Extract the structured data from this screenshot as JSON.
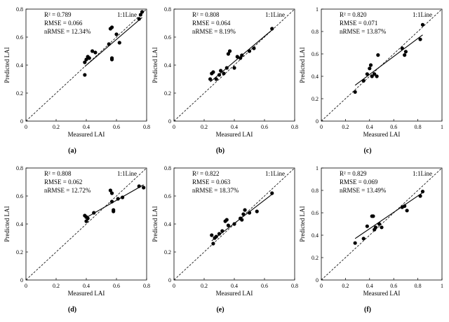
{
  "chart_data": [
    {
      "type": "scatter",
      "panel_label": "(a)",
      "xlabel": "Measured LAI",
      "ylabel": "Predicted LAI",
      "xlim": [
        0,
        0.8
      ],
      "ylim": [
        0,
        0.8
      ],
      "xticks": [
        "0",
        "0.2",
        "0.4",
        "0.6",
        "0.8"
      ],
      "yticks": [
        "0",
        "0.2",
        "0.4",
        "0.6",
        "0.8"
      ],
      "annotations": [
        "R² = 0.789",
        "RMSE = 0.066",
        "nRMSE = 12.34%"
      ],
      "line_label": "1:1Line",
      "points": [
        [
          0.39,
          0.33
        ],
        [
          0.39,
          0.42
        ],
        [
          0.4,
          0.44
        ],
        [
          0.41,
          0.46
        ],
        [
          0.42,
          0.45
        ],
        [
          0.44,
          0.5
        ],
        [
          0.46,
          0.49
        ],
        [
          0.55,
          0.55
        ],
        [
          0.56,
          0.66
        ],
        [
          0.57,
          0.67
        ],
        [
          0.57,
          0.45
        ],
        [
          0.57,
          0.44
        ],
        [
          0.6,
          0.62
        ],
        [
          0.62,
          0.56
        ],
        [
          0.75,
          0.73
        ],
        [
          0.76,
          0.76
        ],
        [
          0.77,
          0.78
        ]
      ],
      "fit": [
        [
          0.39,
          0.39
        ],
        [
          0.77,
          0.74
        ]
      ]
    },
    {
      "type": "scatter",
      "panel_label": "(b)",
      "xlabel": "Measured LAI",
      "ylabel": "Predicted LAI",
      "xlim": [
        0,
        0.8
      ],
      "ylim": [
        0,
        0.8
      ],
      "xticks": [
        "0",
        "0.2",
        "0.4",
        "0.6",
        "0.8"
      ],
      "yticks": [
        "0",
        "0.2",
        "0.4",
        "0.6",
        "0.8"
      ],
      "annotations": [
        "R² = 0.808",
        "RMSE = 0.064",
        "nRMSE = 8.19%"
      ],
      "line_label": "1:1Line",
      "points": [
        [
          0.24,
          0.3
        ],
        [
          0.25,
          0.34
        ],
        [
          0.26,
          0.35
        ],
        [
          0.28,
          0.3
        ],
        [
          0.3,
          0.33
        ],
        [
          0.31,
          0.36
        ],
        [
          0.33,
          0.34
        ],
        [
          0.35,
          0.38
        ],
        [
          0.36,
          0.48
        ],
        [
          0.37,
          0.5
        ],
        [
          0.4,
          0.38
        ],
        [
          0.42,
          0.46
        ],
        [
          0.44,
          0.45
        ],
        [
          0.45,
          0.47
        ],
        [
          0.5,
          0.5
        ],
        [
          0.53,
          0.52
        ],
        [
          0.65,
          0.66
        ]
      ],
      "fit": [
        [
          0.24,
          0.28
        ],
        [
          0.66,
          0.66
        ]
      ]
    },
    {
      "type": "scatter",
      "panel_label": "(c)",
      "xlabel": "Measured LAI",
      "ylabel": "Predicted LAI",
      "xlim": [
        0,
        1
      ],
      "ylim": [
        0,
        1
      ],
      "xticks": [
        "0",
        "0.2",
        "0.4",
        "0.6",
        "0.8",
        "1"
      ],
      "yticks": [
        "0",
        "0.2",
        "0.4",
        "0.6",
        "0.8",
        "1"
      ],
      "annotations": [
        "R² = 0.820",
        "RMSE = 0.071",
        "nRMSE = 13.87%"
      ],
      "line_label": "1:1Line",
      "points": [
        [
          0.28,
          0.26
        ],
        [
          0.35,
          0.36
        ],
        [
          0.38,
          0.42
        ],
        [
          0.4,
          0.47
        ],
        [
          0.41,
          0.5
        ],
        [
          0.42,
          0.4
        ],
        [
          0.44,
          0.42
        ],
        [
          0.46,
          0.4
        ],
        [
          0.47,
          0.59
        ],
        [
          0.67,
          0.65
        ],
        [
          0.69,
          0.59
        ],
        [
          0.7,
          0.62
        ],
        [
          0.82,
          0.73
        ],
        [
          0.84,
          0.86
        ]
      ],
      "fit": [
        [
          0.28,
          0.32
        ],
        [
          0.84,
          0.77
        ]
      ]
    },
    {
      "type": "scatter",
      "panel_label": "(d)",
      "xlabel": "Measured LAI",
      "ylabel": "Predicted LAI",
      "xlim": [
        0,
        0.8
      ],
      "ylim": [
        0,
        0.8
      ],
      "xticks": [
        "0",
        "0.2",
        "0.4",
        "0.6",
        "0.8"
      ],
      "yticks": [
        "0",
        "0.2",
        "0.4",
        "0.6",
        "0.8"
      ],
      "annotations": [
        "R² = 0.808",
        "RMSE = 0.062",
        "nRMSE = 12.72%"
      ],
      "line_label": "1:1Line",
      "points": [
        [
          0.39,
          0.46
        ],
        [
          0.4,
          0.45
        ],
        [
          0.4,
          0.42
        ],
        [
          0.41,
          0.44
        ],
        [
          0.45,
          0.48
        ],
        [
          0.56,
          0.64
        ],
        [
          0.57,
          0.62
        ],
        [
          0.57,
          0.56
        ],
        [
          0.58,
          0.49
        ],
        [
          0.58,
          0.5
        ],
        [
          0.61,
          0.58
        ],
        [
          0.64,
          0.59
        ],
        [
          0.75,
          0.67
        ],
        [
          0.78,
          0.66
        ]
      ],
      "fit": [
        [
          0.39,
          0.44
        ],
        [
          0.78,
          0.68
        ]
      ]
    },
    {
      "type": "scatter",
      "panel_label": "(e)",
      "xlabel": "Measured LAI",
      "ylabel": "Predicted LAI",
      "xlim": [
        0,
        0.8
      ],
      "ylim": [
        0,
        0.8
      ],
      "xticks": [
        "0",
        "0.2",
        "0.4",
        "0.6",
        "0.8"
      ],
      "yticks": [
        "0",
        "0.2",
        "0.4",
        "0.6",
        "0.8"
      ],
      "annotations": [
        "R² = 0.822",
        "RMSE = 0.063",
        "nRMSE = 18.37%"
      ],
      "line_label": "1:1Line",
      "points": [
        [
          0.25,
          0.32
        ],
        [
          0.26,
          0.26
        ],
        [
          0.27,
          0.3
        ],
        [
          0.28,
          0.31
        ],
        [
          0.3,
          0.33
        ],
        [
          0.32,
          0.35
        ],
        [
          0.34,
          0.42
        ],
        [
          0.35,
          0.43
        ],
        [
          0.36,
          0.39
        ],
        [
          0.4,
          0.4
        ],
        [
          0.44,
          0.44
        ],
        [
          0.45,
          0.43
        ],
        [
          0.46,
          0.47
        ],
        [
          0.47,
          0.5
        ],
        [
          0.5,
          0.48
        ],
        [
          0.55,
          0.49
        ],
        [
          0.65,
          0.62
        ]
      ],
      "fit": [
        [
          0.25,
          0.28
        ],
        [
          0.66,
          0.62
        ]
      ]
    },
    {
      "type": "scatter",
      "panel_label": "(f)",
      "xlabel": "Measured LAI",
      "ylabel": "Predicted LAI",
      "xlim": [
        0,
        1
      ],
      "ylim": [
        0,
        1
      ],
      "xticks": [
        "0",
        "0.2",
        "0.4",
        "0.6",
        "0.8",
        "1"
      ],
      "yticks": [
        "0",
        "0.2",
        "0.4",
        "0.6",
        "0.8",
        "1"
      ],
      "annotations": [
        "R² = 0.829",
        "RMSE = 0.069",
        "nRMSE = 13.49%"
      ],
      "line_label": "1:1Line",
      "points": [
        [
          0.28,
          0.33
        ],
        [
          0.35,
          0.37
        ],
        [
          0.38,
          0.48
        ],
        [
          0.42,
          0.57
        ],
        [
          0.43,
          0.57
        ],
        [
          0.44,
          0.45
        ],
        [
          0.45,
          0.47
        ],
        [
          0.48,
          0.5
        ],
        [
          0.5,
          0.47
        ],
        [
          0.67,
          0.65
        ],
        [
          0.69,
          0.66
        ],
        [
          0.71,
          0.62
        ],
        [
          0.82,
          0.75
        ],
        [
          0.84,
          0.79
        ]
      ],
      "fit": [
        [
          0.28,
          0.37
        ],
        [
          0.84,
          0.78
        ]
      ]
    }
  ]
}
